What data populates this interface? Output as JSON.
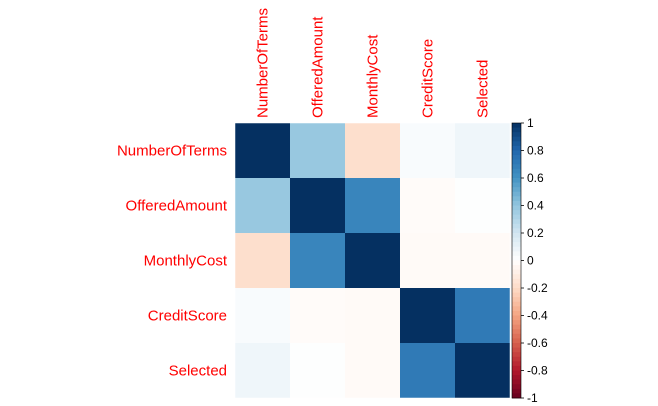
{
  "chart_data": {
    "type": "heatmap",
    "variables": [
      "NumberOfTerms",
      "OfferedAmount",
      "MonthlyCost",
      "CreditScore",
      "Selected"
    ],
    "matrix": [
      [
        1.0,
        0.38,
        -0.18,
        0.03,
        0.07
      ],
      [
        0.38,
        1.0,
        0.66,
        -0.02,
        0.01
      ],
      [
        -0.18,
        0.66,
        1.0,
        -0.03,
        -0.03
      ],
      [
        0.03,
        -0.02,
        -0.03,
        1.0,
        0.71
      ],
      [
        0.07,
        0.01,
        -0.03,
        0.71,
        1.0
      ]
    ],
    "colorbar": {
      "range": [
        -1,
        1
      ],
      "ticks": [
        "1",
        "0.8",
        "0.6",
        "0.4",
        "0.2",
        "0",
        "-0.2",
        "-0.4",
        "-0.6",
        "-0.8",
        "-1"
      ]
    },
    "label_color": "#ff0000",
    "colorscale": [
      "#67001f",
      "#b2182b",
      "#d6604d",
      "#f4a582",
      "#fddbc7",
      "#ffffff",
      "#d1e5f0",
      "#92c5de",
      "#4393c3",
      "#2166ac",
      "#053061"
    ]
  }
}
